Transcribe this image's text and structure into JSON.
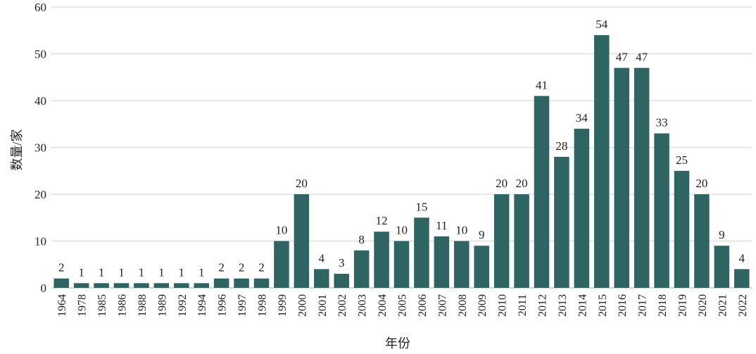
{
  "chart_data": {
    "type": "bar",
    "title": "",
    "xlabel": "年份",
    "ylabel": "数量/家",
    "ylim": [
      0,
      60
    ],
    "yticks": [
      0,
      10,
      20,
      30,
      40,
      50,
      60
    ],
    "grid": "horizontal",
    "bar_color": "#2e6462",
    "categories": [
      "1964",
      "1978",
      "1985",
      "1986",
      "1988",
      "1989",
      "1992",
      "1994",
      "1996",
      "1997",
      "1998",
      "1999",
      "2000",
      "2001",
      "2002",
      "2003",
      "2004",
      "2005",
      "2006",
      "2007",
      "2008",
      "2009",
      "2010",
      "2011",
      "2012",
      "2013",
      "2014",
      "2015",
      "2016",
      "2017",
      "2018",
      "2019",
      "2020",
      "2021",
      "2022"
    ],
    "values": [
      2,
      1,
      1,
      1,
      1,
      1,
      1,
      1,
      2,
      2,
      2,
      10,
      20,
      4,
      3,
      8,
      12,
      10,
      15,
      11,
      10,
      9,
      20,
      20,
      41,
      28,
      34,
      54,
      47,
      47,
      33,
      25,
      20,
      9,
      4
    ]
  }
}
